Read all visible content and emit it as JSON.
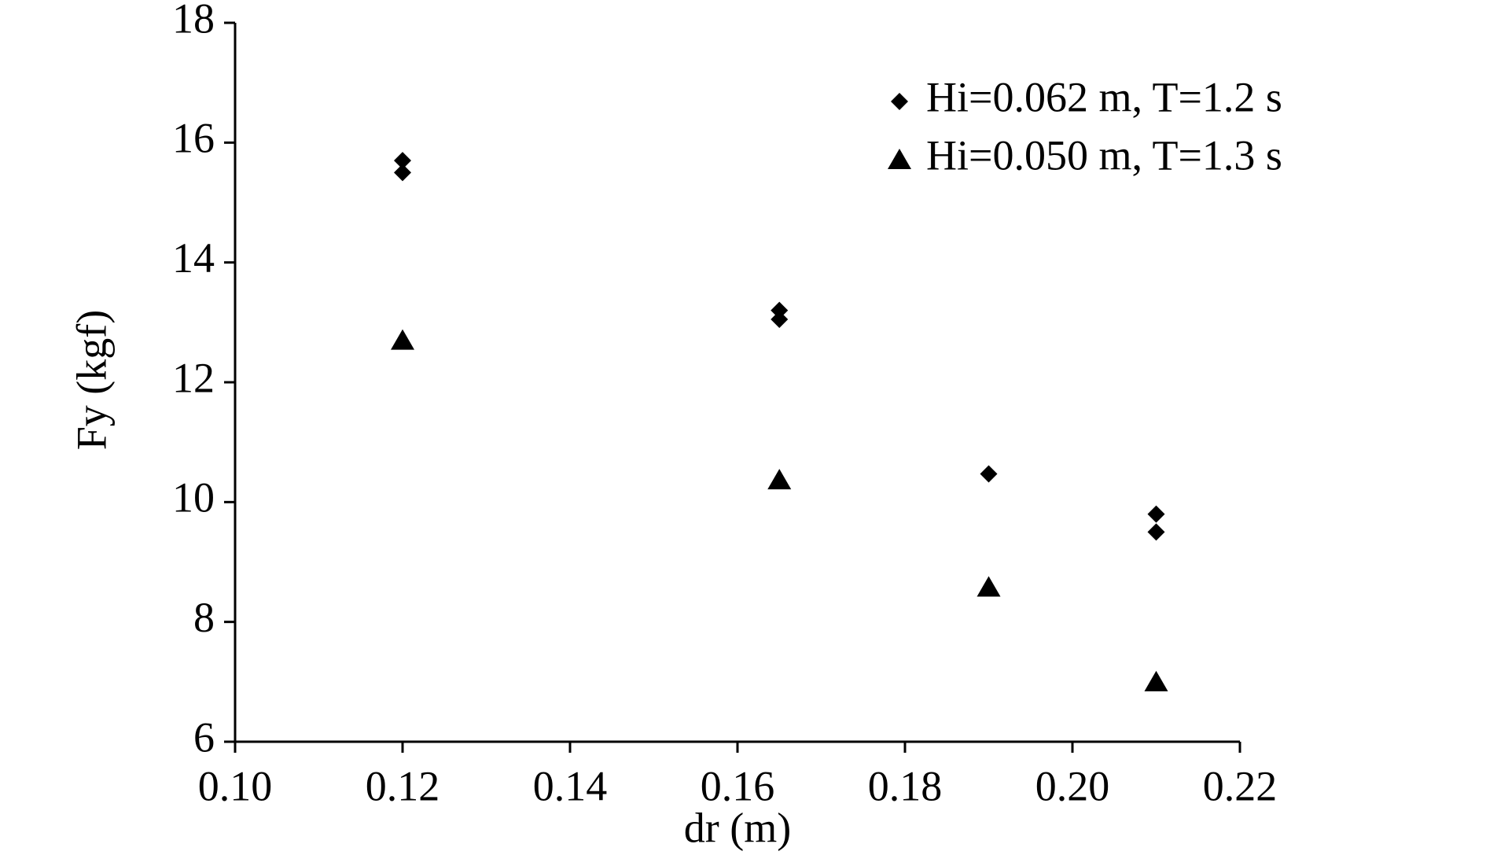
{
  "chart_data": {
    "type": "scatter",
    "xlabel": "dr (m)",
    "ylabel": "Fy (kgf)",
    "xlim": [
      0.1,
      0.22
    ],
    "xticks": [
      {
        "value": 0.1,
        "label": "0.10"
      },
      {
        "value": 0.12,
        "label": "0.12"
      },
      {
        "value": 0.14,
        "label": "0.14"
      },
      {
        "value": 0.16,
        "label": "0.16"
      },
      {
        "value": 0.18,
        "label": "0.18"
      },
      {
        "value": 0.2,
        "label": "0.20"
      },
      {
        "value": 0.22,
        "label": "0.22"
      }
    ],
    "ylim": [
      6,
      18
    ],
    "yticks": [
      6,
      8,
      10,
      12,
      14,
      16,
      18
    ],
    "grid": false,
    "legend": "upper right",
    "series": [
      {
        "name": "Hi=0.062 m, T=1.2 s",
        "marker": "diamond",
        "color": "#000000",
        "x": [
          0.12,
          0.12,
          0.165,
          0.165,
          0.19,
          0.21,
          0.21
        ],
        "values": [
          15.7,
          15.5,
          13.2,
          13.05,
          10.47,
          9.8,
          9.5
        ]
      },
      {
        "name": "Hi=0.050 m, T=1.3 s",
        "marker": "triangle",
        "color": "#000000",
        "x": [
          0.12,
          0.165,
          0.19,
          0.21
        ],
        "values": [
          12.7,
          10.37,
          8.58,
          7.0
        ]
      }
    ]
  }
}
